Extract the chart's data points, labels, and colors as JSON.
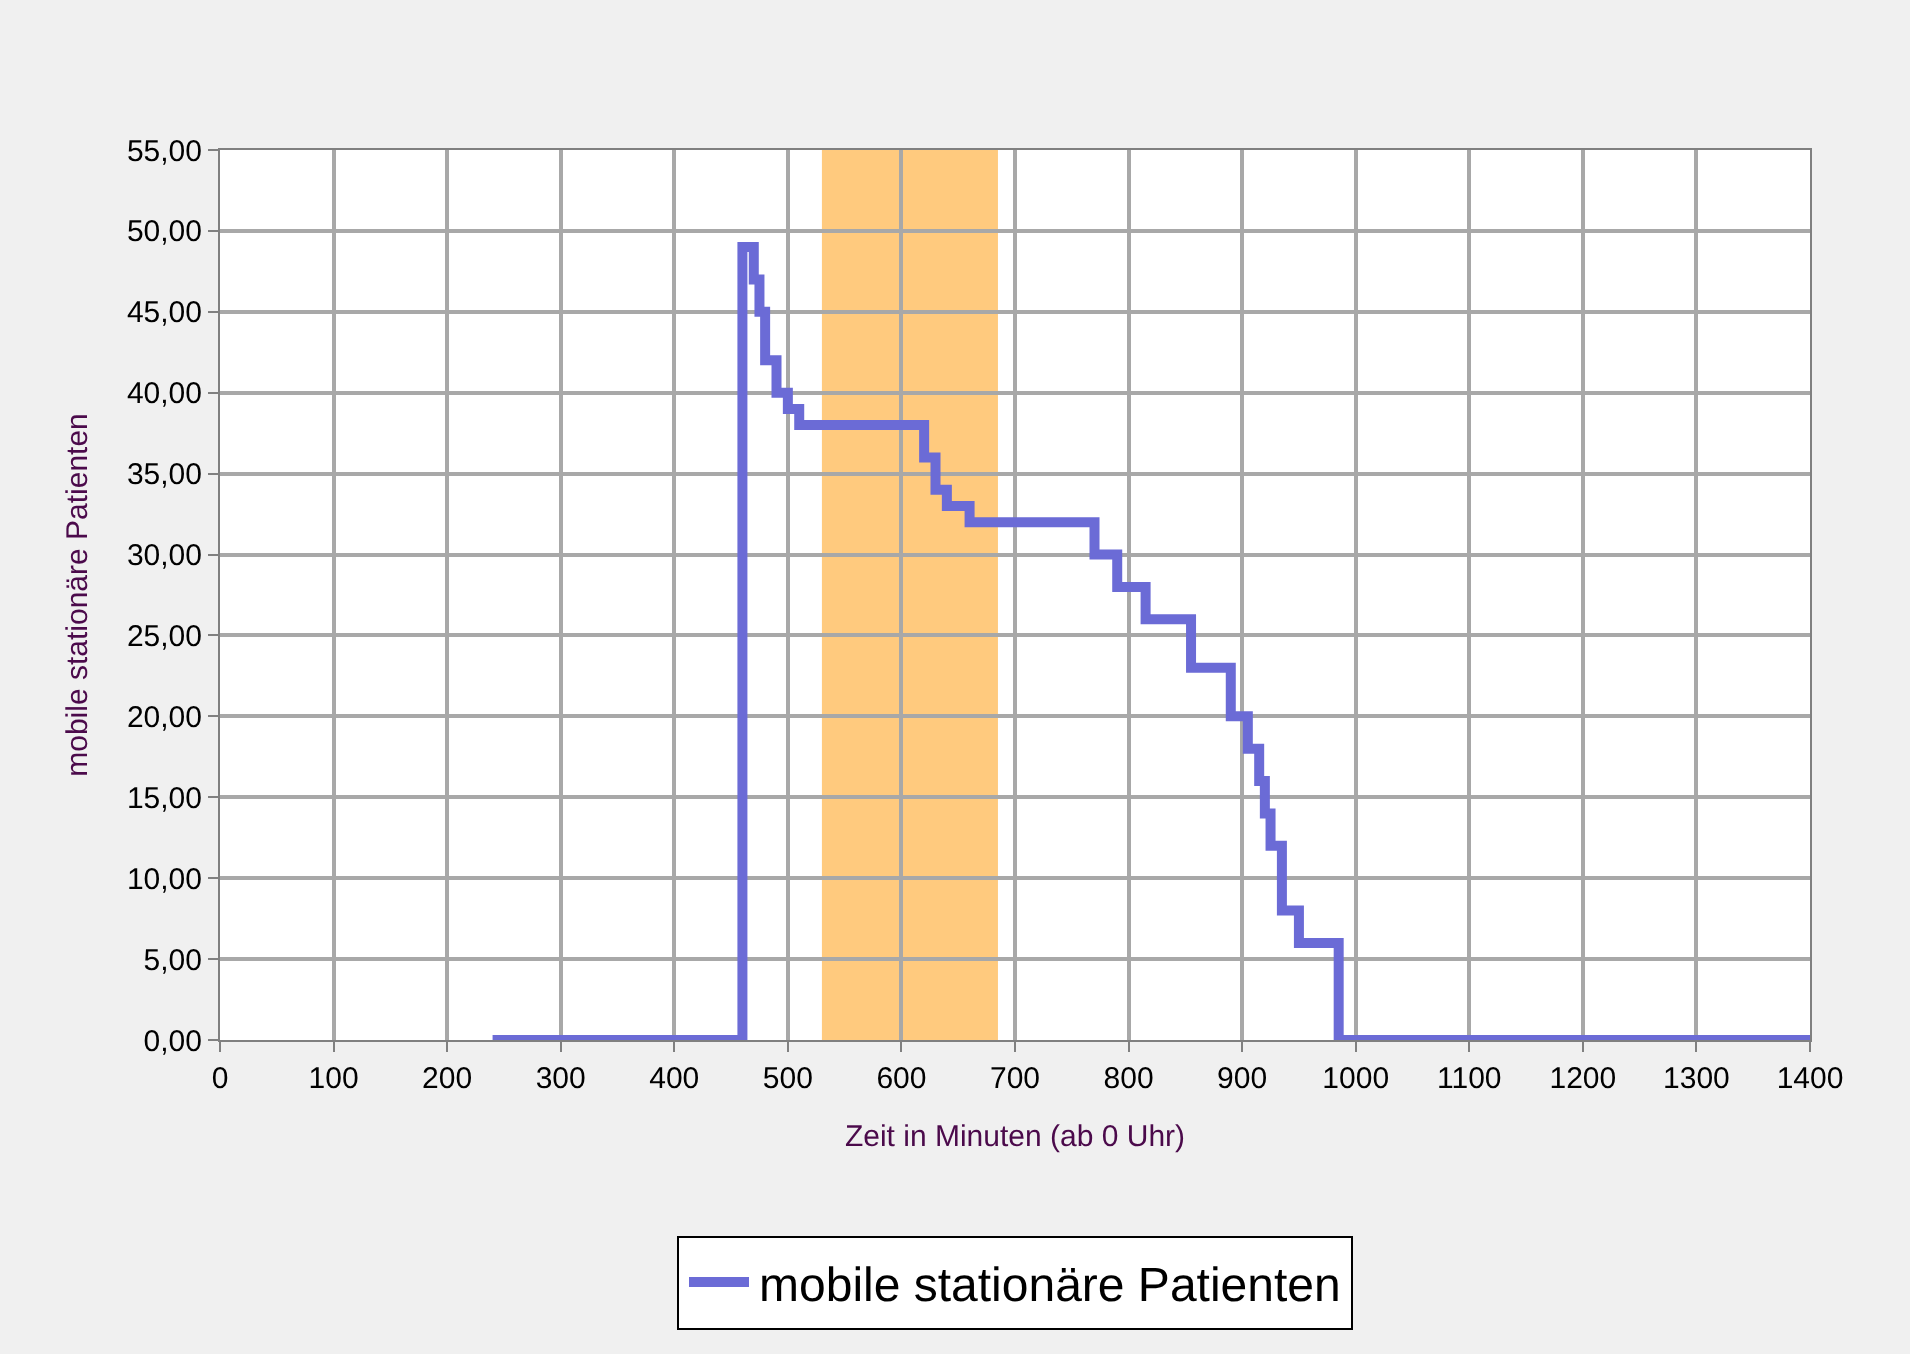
{
  "chart_data": {
    "type": "step",
    "xlabel": "Zeit in Minuten (ab 0 Uhr)",
    "ylabel": "mobile stationäre Patienten",
    "x": [
      240,
      455,
      460,
      470,
      475,
      480,
      490,
      500,
      510,
      620,
      630,
      640,
      660,
      770,
      790,
      815,
      855,
      890,
      905,
      915,
      920,
      925,
      935,
      950,
      985,
      1400
    ],
    "series": [
      {
        "name": "mobile stationäre Patienten",
        "color": "#6b6bd6",
        "values": [
          0,
          0,
          49,
          47,
          45,
          42,
          40,
          39,
          38,
          36,
          34,
          33,
          32,
          30,
          28,
          26,
          23,
          20,
          18,
          16,
          14,
          12,
          8,
          6,
          0,
          0
        ]
      }
    ],
    "bands": [
      {
        "axis": "x",
        "from": 530,
        "to": 685,
        "color": "#ffb347"
      }
    ],
    "xlim": [
      0,
      1400
    ],
    "xticks": [
      0,
      100,
      200,
      300,
      400,
      500,
      600,
      700,
      800,
      900,
      1000,
      1100,
      1200,
      1300,
      1400
    ],
    "ylim": [
      0,
      55
    ],
    "yticks": [
      {
        "value": 0,
        "label": "0,00"
      },
      {
        "value": 5,
        "label": "5,00"
      },
      {
        "value": 10,
        "label": "10,00"
      },
      {
        "value": 15,
        "label": "15,00"
      },
      {
        "value": 20,
        "label": "20,00"
      },
      {
        "value": 25,
        "label": "25,00"
      },
      {
        "value": 30,
        "label": "30,00"
      },
      {
        "value": 35,
        "label": "35,00"
      },
      {
        "value": 40,
        "label": "40,00"
      },
      {
        "value": 45,
        "label": "45,00"
      },
      {
        "value": 50,
        "label": "50,00"
      },
      {
        "value": 55,
        "label": "55,00"
      }
    ],
    "grid": true,
    "legend": "bottom",
    "marker": "none",
    "line_style": "solid"
  }
}
